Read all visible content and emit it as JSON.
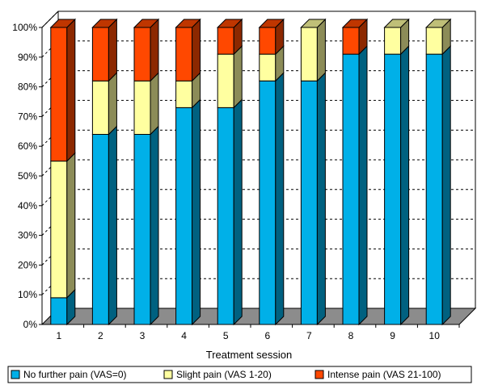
{
  "chart_data": {
    "type": "bar",
    "stacked": true,
    "three_d": true,
    "categories": [
      "1",
      "2",
      "3",
      "4",
      "5",
      "6",
      "7",
      "8",
      "9",
      "10"
    ],
    "series": [
      {
        "name": "No further pain (VAS=0)",
        "color": "#00b0e8",
        "values": [
          9,
          64,
          64,
          73,
          73,
          82,
          82,
          91,
          91,
          91
        ]
      },
      {
        "name": "Slight pain (VAS 1-20)",
        "color": "#ffffa0",
        "values": [
          46,
          18,
          18,
          9,
          18,
          9,
          18,
          0,
          9,
          9
        ]
      },
      {
        "name": "Intense pain (VAS 21-100)",
        "color": "#ff4800",
        "values": [
          45,
          18,
          18,
          18,
          9,
          9,
          0,
          9,
          0,
          0
        ]
      }
    ],
    "y_ticks": [
      "0%",
      "10%",
      "20%",
      "30%",
      "40%",
      "50%",
      "60%",
      "70%",
      "80%",
      "90%",
      "100%"
    ],
    "ylim": [
      0,
      100
    ],
    "xlabel": "Treatment session",
    "ylabel": "",
    "title": "",
    "grid": true,
    "legend_position": "bottom"
  }
}
